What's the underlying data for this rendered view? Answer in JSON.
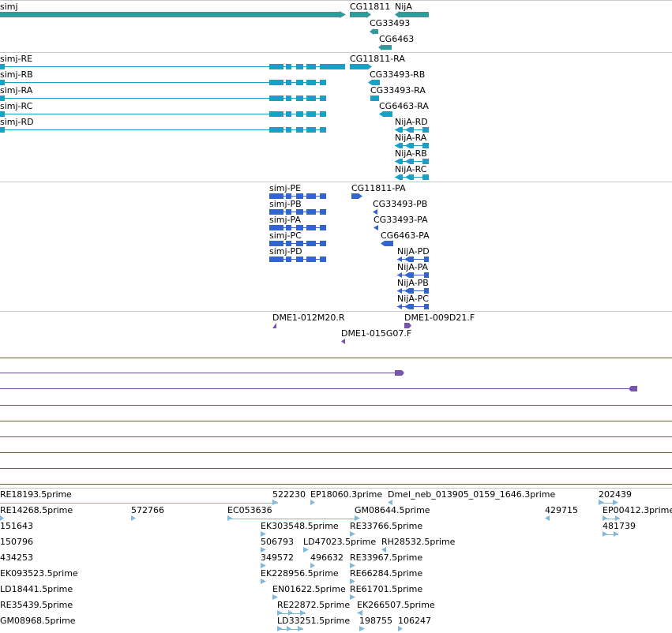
{
  "colors": {
    "gene": "#33999a",
    "transcript": "#1a9fc7",
    "protein": "#3366cc",
    "oligo": "#7755aa",
    "est": "#80b7dd",
    "separator": "#c9c9c9"
  },
  "gene_track": {
    "genes": [
      "simj",
      "CG11811",
      "NijA",
      "CG33493",
      "CG6463"
    ]
  },
  "transcript_track": {
    "transcripts": [
      "simj-RE",
      "simj-RB",
      "simj-RA",
      "simj-RC",
      "simj-RD",
      "CG11811-RA",
      "CG33493-RB",
      "CG33493-RA",
      "CG6463-RA",
      "NijA-RD",
      "NijA-RA",
      "NijA-RB",
      "NijA-RC"
    ]
  },
  "protein_track": {
    "proteins": [
      "simj-PE",
      "simj-PB",
      "simj-PA",
      "simj-PC",
      "simj-PD",
      "CG11811-PA",
      "CG33493-PB",
      "CG33493-PA",
      "CG6463-PA",
      "NijA-PD",
      "NijA-PA",
      "NijA-PB",
      "NijA-PC"
    ]
  },
  "oligo_track": {
    "oligos": [
      "DME1-012M20.R",
      "DME1-009D21.F",
      "DME1-015G07.F"
    ]
  },
  "est_track": {
    "ests": [
      "RE18193.5prime",
      "522230",
      "EP18060.3prime",
      "Dmel_neb_013905_0159_1646.3prime",
      "202439",
      "RE14268.5prime",
      "572766",
      "EC053636",
      "GM08644.5prime",
      "429715",
      "EP00412.3prime",
      "151643",
      "EK303548.5prime",
      "RE33766.5prime",
      "481739",
      "150796",
      "506793",
      "LD47023.5prime",
      "RH28532.5prime",
      "434253",
      "349572",
      "496632",
      "RE33967.5prime",
      "EK093523.5prime",
      "EK228956.5prime",
      "RE66284.5prime",
      "LD18441.5prime",
      "EN01622.5prime",
      "RE61701.5prime",
      "RE35439.5prime",
      "RE22872.5prime",
      "EK266507.5prime",
      "GM08968.5prime",
      "LD33251.5prime",
      "198755",
      "106247"
    ]
  }
}
